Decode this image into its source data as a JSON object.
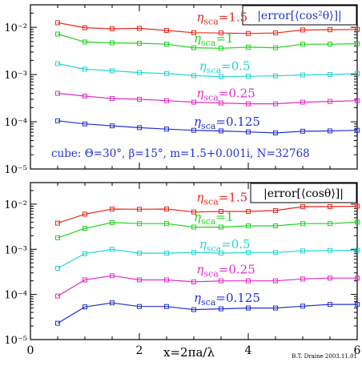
{
  "chart_data": [
    {
      "type": "line",
      "y_scale": "log",
      "ylim": [
        1e-05,
        0.03
      ],
      "xlim": [
        0,
        6
      ],
      "ytick_labels": [
        "10⁻⁵",
        "10⁻⁴",
        "10⁻³",
        "10⁻²"
      ],
      "yticks": [
        1e-05,
        0.0001,
        0.001,
        0.01
      ],
      "xticks": [
        0,
        2,
        4,
        6
      ],
      "title": "|error[⟨cos²θ⟩]|",
      "annotation": "cube:  Θ=30°,  β=15°,  m=1.5+0.001i,  N=32768",
      "series": [
        {
          "name": "ηsca=1.5",
          "color": "#e8291c",
          "x": [
            0.5,
            1,
            1.5,
            2,
            2.5,
            3,
            3.5,
            4,
            4.5,
            5,
            5.5,
            6
          ],
          "values": [
            0.0125,
            0.0098,
            0.0093,
            0.0095,
            0.0086,
            0.0077,
            0.0076,
            0.0074,
            0.0076,
            0.0088,
            0.0089,
            0.009
          ]
        },
        {
          "name": "ηsca=1",
          "color": "#1fd41f",
          "x": [
            0.5,
            1,
            1.5,
            2,
            2.5,
            3,
            3.5,
            4,
            4.5,
            5,
            5.5,
            6
          ],
          "values": [
            0.0072,
            0.0049,
            0.0047,
            0.0046,
            0.0044,
            0.0037,
            0.0036,
            0.0038,
            0.0037,
            0.0044,
            0.0044,
            0.0045
          ]
        },
        {
          "name": "ηsca=0.5",
          "color": "#22d4d4",
          "x": [
            0.5,
            1,
            1.5,
            2,
            2.5,
            3,
            3.5,
            4,
            4.5,
            5,
            5.5,
            6
          ],
          "values": [
            0.0017,
            0.0013,
            0.0012,
            0.0011,
            0.00105,
            0.00095,
            0.0009,
            0.00092,
            0.00094,
            0.00098,
            0.001,
            0.00105
          ]
        },
        {
          "name": "ηsca=0.25",
          "color": "#e02ec8",
          "x": [
            0.5,
            1,
            1.5,
            2,
            2.5,
            3,
            3.5,
            4,
            4.5,
            5,
            5.5,
            6
          ],
          "values": [
            0.0004,
            0.00035,
            0.00031,
            0.0003,
            0.00028,
            0.00026,
            0.00025,
            0.00024,
            0.00024,
            0.00026,
            0.00027,
            0.00028
          ]
        },
        {
          "name": "ηsca=0.125",
          "color": "#2233cc",
          "x": [
            0.5,
            1,
            1.5,
            2,
            2.5,
            3,
            3.5,
            4,
            4.5,
            5,
            5.5,
            6
          ],
          "values": [
            0.000105,
            9e-05,
            8.2e-05,
            7.5e-05,
            7e-05,
            6.6e-05,
            6.4e-05,
            6.1e-05,
            5.8e-05,
            6.3e-05,
            6.4e-05,
            6.6e-05
          ]
        }
      ],
      "series_labels": [
        {
          "eta": "η",
          "sub": "sca",
          "rest": "=1.5",
          "color": "#e8291c"
        },
        {
          "eta": "η",
          "sub": "sca",
          "rest": "=1",
          "color": "#1fd41f"
        },
        {
          "eta": "η",
          "sub": "sca",
          "rest": "=0.5",
          "color": "#22d4d4"
        },
        {
          "eta": "η",
          "sub": "sca",
          "rest": "=0.25",
          "color": "#e02ec8"
        },
        {
          "eta": "η",
          "sub": "sca",
          "rest": "=0.125",
          "color": "#2233cc"
        }
      ],
      "label_x": [
        3.05,
        3.0,
        3.1,
        3.05,
        3.0
      ],
      "label_y": [
        0.0135,
        0.0048,
        0.00125,
        0.00033,
        8.3e-05
      ]
    },
    {
      "type": "line",
      "y_scale": "log",
      "ylim": [
        1e-05,
        0.03
      ],
      "xlim": [
        0,
        6
      ],
      "ytick_labels": [
        "10⁻⁵",
        "10⁻⁴",
        "10⁻³",
        "10⁻²"
      ],
      "yticks": [
        1e-05,
        0.0001,
        0.001,
        0.01
      ],
      "xticks": [
        0,
        2,
        4,
        6
      ],
      "xtick_labels": [
        "0",
        "2",
        "4",
        "6"
      ],
      "title": "|error[⟨cosθ⟩]|",
      "xlabel": "x=2πa/λ",
      "series": [
        {
          "name": "ηsca=1.5",
          "color": "#e8291c",
          "x": [
            0.5,
            1,
            1.5,
            2,
            2.5,
            3,
            3.5,
            4,
            4.5,
            5,
            5.5,
            6
          ],
          "values": [
            0.0038,
            0.006,
            0.0078,
            0.0077,
            0.0078,
            0.0067,
            0.0069,
            0.0069,
            0.0072,
            0.0088,
            0.0088,
            0.009
          ]
        },
        {
          "name": "ηsca=1",
          "color": "#1fd41f",
          "x": [
            0.5,
            1,
            1.5,
            2,
            2.5,
            3,
            3.5,
            4,
            4.5,
            5,
            5.5,
            6
          ],
          "values": [
            0.0018,
            0.0029,
            0.0039,
            0.0037,
            0.0037,
            0.0031,
            0.0031,
            0.0033,
            0.0033,
            0.0037,
            0.0037,
            0.004
          ]
        },
        {
          "name": "ηsca=0.5",
          "color": "#22d4d4",
          "x": [
            0.5,
            1,
            1.5,
            2,
            2.5,
            3,
            3.5,
            4,
            4.5,
            5,
            5.5,
            6
          ],
          "values": [
            0.00038,
            0.0008,
            0.001,
            0.00082,
            0.00082,
            0.00085,
            0.00082,
            0.00085,
            0.00085,
            0.00092,
            0.00094,
            0.00095
          ]
        },
        {
          "name": "ηsca=0.25",
          "color": "#e02ec8",
          "x": [
            0.5,
            1,
            1.5,
            2,
            2.5,
            3,
            3.5,
            4,
            4.5,
            5,
            5.5,
            6
          ],
          "values": [
            9.2e-05,
            0.00021,
            0.00026,
            0.00021,
            0.00021,
            0.00019,
            0.0002,
            0.0002,
            0.0002,
            0.00022,
            0.00023,
            0.00023
          ]
        },
        {
          "name": "ηsca=0.125",
          "color": "#2233cc",
          "x": [
            0.5,
            1,
            1.5,
            2,
            2.5,
            3,
            3.5,
            4,
            4.5,
            5,
            5.5,
            6
          ],
          "values": [
            2.3e-05,
            5.3e-05,
            6.5e-05,
            5.4e-05,
            5.4e-05,
            4.6e-05,
            4.8e-05,
            5e-05,
            5e-05,
            5.5e-05,
            6e-05,
            6e-05
          ]
        }
      ],
      "series_labels": [
        {
          "eta": "η",
          "sub": "sca",
          "rest": "=1.5",
          "color": "#e8291c"
        },
        {
          "eta": "η",
          "sub": "sca",
          "rest": "=1",
          "color": "#1fd41f"
        },
        {
          "eta": "η",
          "sub": "sca",
          "rest": "=0.5",
          "color": "#22d4d4"
        },
        {
          "eta": "η",
          "sub": "sca",
          "rest": "=0.25",
          "color": "#e02ec8"
        },
        {
          "eta": "η",
          "sub": "sca",
          "rest": "=0.125",
          "color": "#2233cc"
        }
      ],
      "label_x": [
        3.05,
        3.0,
        3.1,
        3.05,
        3.0
      ],
      "label_y": [
        0.0115,
        0.0042,
        0.00105,
        0.00029,
        6.8e-05
      ]
    }
  ],
  "credit": "B.T. Draine  2003.11.01"
}
